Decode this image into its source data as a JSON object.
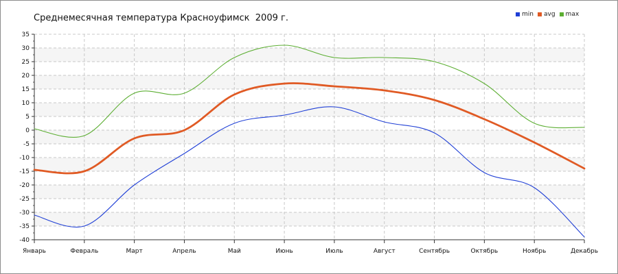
{
  "chart_data": {
    "type": "line",
    "title": "Среднемесячная температура Красноуфимск  2009 г.",
    "xlabel": "",
    "ylabel": "",
    "categories": [
      "Январь",
      "Февраль",
      "Март",
      "Апрель",
      "Май",
      "Июнь",
      "Июль",
      "Август",
      "Сентябрь",
      "Октябрь",
      "Ноябрь",
      "Декабрь"
    ],
    "ylim": [
      -40,
      35
    ],
    "yticks": [
      35,
      30,
      25,
      20,
      15,
      10,
      5,
      0,
      -5,
      -10,
      -15,
      -20,
      -25,
      -30,
      -35,
      -40
    ],
    "grid": true,
    "legend_position": "top-right",
    "series": [
      {
        "name": "min",
        "color": "#1f3fd6",
        "values": [
          -31,
          -35,
          -20,
          -8.5,
          2.5,
          5.5,
          8.5,
          3,
          -1,
          -15.5,
          -21,
          -39
        ]
      },
      {
        "name": "avg",
        "color": "#e05a24",
        "values": [
          -14.5,
          -15,
          -3,
          0,
          13,
          17,
          16,
          14.5,
          11,
          4,
          -4.5,
          -14
        ]
      },
      {
        "name": "max",
        "color": "#5cae32",
        "values": [
          0.5,
          -2,
          13.5,
          13.5,
          26.5,
          31,
          26.5,
          26.5,
          25,
          17,
          2.5,
          1
        ]
      }
    ]
  }
}
